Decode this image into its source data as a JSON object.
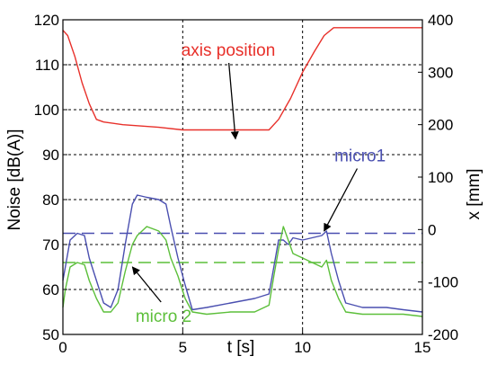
{
  "chart_data": {
    "type": "line",
    "xlabel": "t [s]",
    "ylabel_left": "Noise [dB(A)]",
    "ylabel_right": "x [mm]",
    "xlim": [
      0,
      15
    ],
    "ylim_left": [
      50,
      120
    ],
    "ylim_right": [
      -200,
      400
    ],
    "grid": true,
    "grid_style": "dashed",
    "x_ticks": [
      "0",
      "5",
      "10",
      "15"
    ],
    "x_tick_values": [
      0,
      5,
      10,
      15
    ],
    "y_left_ticks": [
      "50",
      "60",
      "70",
      "80",
      "90",
      "100",
      "110",
      "120"
    ],
    "y_left_tick_values": [
      50,
      60,
      70,
      80,
      90,
      100,
      110,
      120
    ],
    "y_right_ticks": [
      "-200",
      "-100",
      "0",
      "100",
      "200",
      "300",
      "400"
    ],
    "y_right_tick_values": [
      -200,
      -100,
      0,
      100,
      200,
      300,
      400
    ],
    "colors": {
      "axis_position": "#e8302a",
      "micro1": "#4a4fb0",
      "micro2": "#5cbf3a",
      "axes": "#000000",
      "grid": "#000000"
    },
    "series": [
      {
        "name": "axis position",
        "axis": "right",
        "color": "#e8302a",
        "points": [
          [
            0.0,
            380
          ],
          [
            0.2,
            370
          ],
          [
            0.5,
            330
          ],
          [
            0.8,
            280
          ],
          [
            1.1,
            240
          ],
          [
            1.4,
            210
          ],
          [
            1.7,
            205
          ],
          [
            2.5,
            200
          ],
          [
            4.0,
            195
          ],
          [
            5.0,
            190
          ],
          [
            6.0,
            190
          ],
          [
            7.0,
            190
          ],
          [
            8.0,
            190
          ],
          [
            8.6,
            190
          ],
          [
            9.0,
            210
          ],
          [
            9.5,
            250
          ],
          [
            10.0,
            300
          ],
          [
            10.5,
            340
          ],
          [
            10.9,
            370
          ],
          [
            11.3,
            385
          ],
          [
            12.0,
            385
          ],
          [
            13.0,
            385
          ],
          [
            14.0,
            385
          ],
          [
            15.0,
            385
          ]
        ]
      },
      {
        "name": "micro1",
        "axis": "left",
        "color": "#4a4fb0",
        "points": [
          [
            0.0,
            62
          ],
          [
            0.1,
            65
          ],
          [
            0.3,
            71
          ],
          [
            0.6,
            72.5
          ],
          [
            0.9,
            72
          ],
          [
            1.1,
            67
          ],
          [
            1.4,
            62
          ],
          [
            1.7,
            57
          ],
          [
            2.0,
            56
          ],
          [
            2.3,
            60
          ],
          [
            2.6,
            70
          ],
          [
            2.9,
            79
          ],
          [
            3.1,
            81
          ],
          [
            3.5,
            80.5
          ],
          [
            4.0,
            80
          ],
          [
            4.3,
            79
          ],
          [
            4.5,
            74
          ],
          [
            4.8,
            67
          ],
          [
            5.1,
            61
          ],
          [
            5.4,
            55.5
          ],
          [
            6.0,
            56
          ],
          [
            7.0,
            57
          ],
          [
            8.0,
            58
          ],
          [
            8.6,
            59
          ],
          [
            8.8,
            65
          ],
          [
            9.0,
            71
          ],
          [
            9.2,
            71
          ],
          [
            9.4,
            70
          ],
          [
            9.6,
            71.5
          ],
          [
            10.0,
            71
          ],
          [
            10.4,
            71.5
          ],
          [
            10.8,
            72
          ],
          [
            11.0,
            73
          ],
          [
            11.2,
            68
          ],
          [
            11.5,
            62
          ],
          [
            11.8,
            57
          ],
          [
            12.5,
            56
          ],
          [
            13.5,
            56
          ],
          [
            14.2,
            55.5
          ],
          [
            15.0,
            55
          ]
        ]
      },
      {
        "name": "micro 2",
        "axis": "left",
        "color": "#5cbf3a",
        "points": [
          [
            0.0,
            56
          ],
          [
            0.1,
            60
          ],
          [
            0.3,
            65
          ],
          [
            0.6,
            66
          ],
          [
            0.9,
            65.5
          ],
          [
            1.1,
            62
          ],
          [
            1.4,
            58
          ],
          [
            1.7,
            55
          ],
          [
            2.0,
            55
          ],
          [
            2.3,
            57
          ],
          [
            2.6,
            64
          ],
          [
            2.9,
            70
          ],
          [
            3.1,
            72
          ],
          [
            3.5,
            74
          ],
          [
            4.0,
            73
          ],
          [
            4.3,
            71
          ],
          [
            4.5,
            67
          ],
          [
            4.8,
            63
          ],
          [
            5.1,
            58
          ],
          [
            5.4,
            55
          ],
          [
            6.0,
            54.5
          ],
          [
            7.0,
            55
          ],
          [
            8.0,
            55
          ],
          [
            8.6,
            56.5
          ],
          [
            8.8,
            63
          ],
          [
            9.0,
            69
          ],
          [
            9.2,
            74
          ],
          [
            9.4,
            71
          ],
          [
            9.6,
            68
          ],
          [
            10.0,
            67
          ],
          [
            10.4,
            66
          ],
          [
            10.8,
            65
          ],
          [
            11.0,
            66.5
          ],
          [
            11.2,
            62
          ],
          [
            11.5,
            58
          ],
          [
            11.8,
            55
          ],
          [
            12.5,
            54.5
          ],
          [
            13.5,
            54.5
          ],
          [
            14.2,
            54.5
          ],
          [
            15.0,
            54
          ]
        ]
      }
    ],
    "reference_lines": [
      {
        "series": "micro1",
        "axis": "left",
        "value": 72.5,
        "style": "dashed",
        "color": "#4a4fb0"
      },
      {
        "series": "micro 2",
        "axis": "left",
        "value": 66,
        "style": "dashed",
        "color": "#5cbf3a"
      }
    ],
    "annotations": [
      {
        "text": "axis position",
        "color": "#e8302a",
        "text_at": [
          6.9,
          112
        ],
        "arrow_to": [
          7.2,
          93.5
        ]
      },
      {
        "text": "micro1",
        "color": "#4a4fb0",
        "text_at": [
          12.4,
          88.5
        ],
        "arrow_to": [
          10.9,
          73
        ]
      },
      {
        "text": "micro 2",
        "color": "#5cbf3a",
        "text_at": [
          4.2,
          52.8
        ],
        "arrow_to": [
          2.9,
          65
        ]
      }
    ]
  }
}
